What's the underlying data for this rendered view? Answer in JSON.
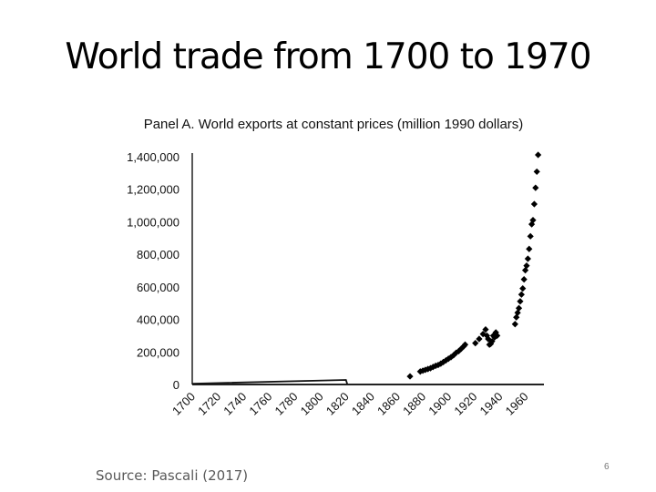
{
  "slide": {
    "title": "World trade from 1700 to 1970",
    "source": "Source: Pascali (2017)",
    "page_number": "6"
  },
  "chart_data": {
    "type": "scatter",
    "title": "Panel A. World exports at constant prices (million 1990 dollars)",
    "xlabel": "",
    "ylabel": "",
    "xlim": [
      1700,
      1971
    ],
    "ylim": [
      0,
      1400000
    ],
    "x_ticks": [
      "1700",
      "1720",
      "1740",
      "1760",
      "1780",
      "1800",
      "1820",
      "1840",
      "1860",
      "1880",
      "1900",
      "1920",
      "1940",
      "1960"
    ],
    "y_ticks": [
      "0",
      "200,000",
      "400,000",
      "600,000",
      "800,000",
      "1,000,000",
      "1,200,000",
      "1,400,000"
    ],
    "grid": false,
    "line_series": [
      [
        1700,
        5000
      ],
      [
        1820,
        28000
      ],
      [
        1821,
        3000
      ]
    ],
    "points": [
      [
        1870,
        50000
      ],
      [
        1878,
        80000
      ],
      [
        1880,
        85000
      ],
      [
        1882,
        90000
      ],
      [
        1884,
        95000
      ],
      [
        1886,
        100000
      ],
      [
        1888,
        108000
      ],
      [
        1890,
        115000
      ],
      [
        1892,
        120000
      ],
      [
        1894,
        128000
      ],
      [
        1896,
        138000
      ],
      [
        1898,
        148000
      ],
      [
        1900,
        158000
      ],
      [
        1902,
        168000
      ],
      [
        1904,
        180000
      ],
      [
        1906,
        195000
      ],
      [
        1908,
        205000
      ],
      [
        1910,
        220000
      ],
      [
        1912,
        235000
      ],
      [
        1913,
        245000
      ],
      [
        1921,
        254000
      ],
      [
        1924,
        280000
      ],
      [
        1927,
        310000
      ],
      [
        1929,
        338000
      ],
      [
        1930,
        300000
      ],
      [
        1931,
        280000
      ],
      [
        1932,
        245000
      ],
      [
        1933,
        250000
      ],
      [
        1934,
        265000
      ],
      [
        1935,
        300000
      ],
      [
        1936,
        290000
      ],
      [
        1937,
        320000
      ],
      [
        1938,
        300000
      ],
      [
        1952,
        371000
      ],
      [
        1953,
        413000
      ],
      [
        1954,
        441000
      ],
      [
        1955,
        469000
      ],
      [
        1956,
        511000
      ],
      [
        1957,
        553000
      ],
      [
        1958,
        590000
      ],
      [
        1959,
        646000
      ],
      [
        1960,
        702000
      ],
      [
        1961,
        730000
      ],
      [
        1962,
        773000
      ],
      [
        1963,
        833000
      ],
      [
        1964,
        911000
      ],
      [
        1965,
        985000
      ],
      [
        1966,
        1010000
      ],
      [
        1967,
        1109000
      ],
      [
        1968,
        1209000
      ],
      [
        1969,
        1308000
      ],
      [
        1970,
        1411000
      ]
    ],
    "marker_color": "#000000"
  }
}
